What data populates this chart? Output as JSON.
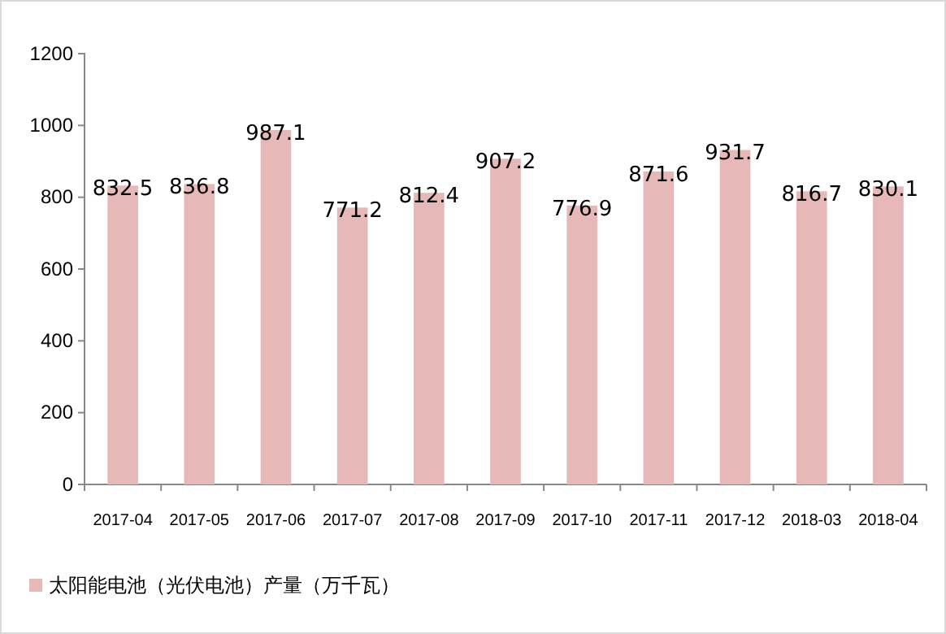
{
  "chart_data": {
    "type": "bar",
    "categories": [
      "2017-04",
      "2017-05",
      "2017-06",
      "2017-07",
      "2017-08",
      "2017-09",
      "2017-10",
      "2017-11",
      "2017-12",
      "2018-03",
      "2018-04"
    ],
    "series": [
      {
        "name": "太阳能电池（光伏电池）产量（万千瓦）",
        "color": "#e6b8b7",
        "values": [
          832.5,
          836.8,
          987.1,
          771.2,
          812.4,
          907.2,
          776.9,
          871.6,
          931.7,
          816.7,
          830.1
        ]
      }
    ],
    "ylim": [
      0,
      1200
    ],
    "yticks": [
      0,
      200,
      400,
      600,
      800,
      1000,
      1200
    ],
    "grid": false,
    "data_labels": true,
    "legend": "bottom left"
  }
}
